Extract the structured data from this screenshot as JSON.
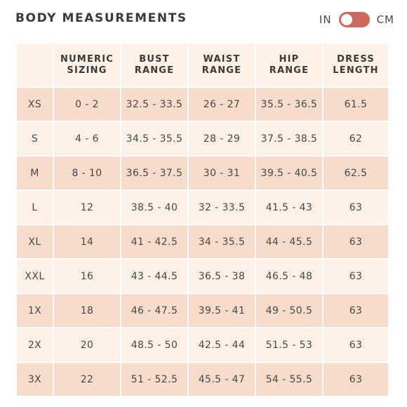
{
  "title": "BODY MEASUREMENTS",
  "units": {
    "left": "IN",
    "right": "CM",
    "selected": "IN"
  },
  "table": {
    "headers": [
      {
        "line1": "",
        "line2": ""
      },
      {
        "line1": "NUMERIC",
        "line2": "SIZING"
      },
      {
        "line1": "BUST",
        "line2": "RANGE"
      },
      {
        "line1": "WAIST",
        "line2": "RANGE"
      },
      {
        "line1": "HIP",
        "line2": "RANGE"
      },
      {
        "line1": "DRESS",
        "line2": "LENGTH"
      }
    ],
    "rows": [
      [
        "XS",
        "0 - 2",
        "32.5 - 33.5",
        "26 - 27",
        "35.5 - 36.5",
        "61.5"
      ],
      [
        "S",
        "4 - 6",
        "34.5 - 35.5",
        "28 - 29",
        "37.5 - 38.5",
        "62"
      ],
      [
        "M",
        "8 - 10",
        "36.5 - 37.5",
        "30 - 31",
        "39.5 - 40.5",
        "62.5"
      ],
      [
        "L",
        "12",
        "38.5 - 40",
        "32 - 33.5",
        "41.5 - 43",
        "63"
      ],
      [
        "XL",
        "14",
        "41 - 42.5",
        "34 - 35.5",
        "44 - 45.5",
        "63"
      ],
      [
        "XXL",
        "16",
        "43 - 44.5",
        "36.5 - 38",
        "46.5 - 48",
        "63"
      ],
      [
        "1X",
        "18",
        "46 - 47.5",
        "39.5 - 41",
        "49 - 50.5",
        "63"
      ],
      [
        "2X",
        "20",
        "48.5 - 50",
        "42.5 - 44",
        "51.5 - 53",
        "63"
      ],
      [
        "3X",
        "22",
        "51 - 52.5",
        "45.5 - 47",
        "54 - 55.5",
        "63"
      ]
    ]
  },
  "colors": {
    "toggle": "#cf675f",
    "row_dark": "#f8dccb",
    "row_light": "#fdf0e6"
  }
}
